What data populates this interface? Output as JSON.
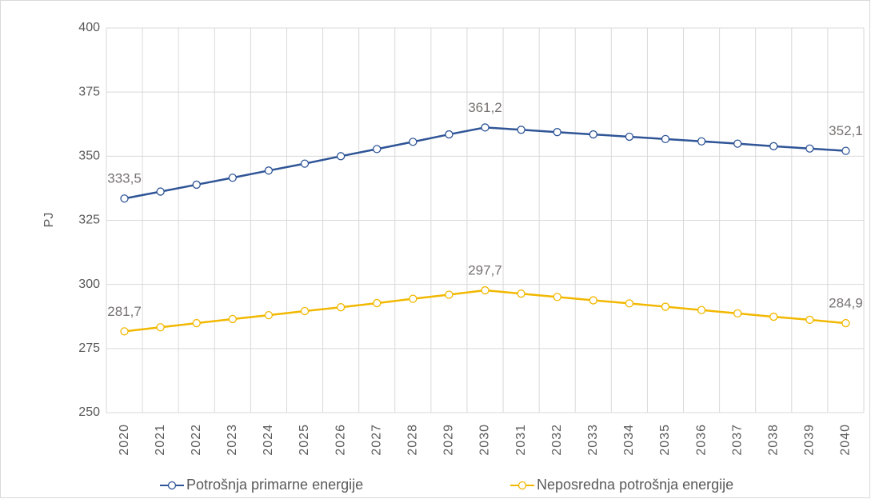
{
  "chart_data": {
    "type": "line",
    "y_label": "PJ",
    "categories": [
      "2020",
      "2021",
      "2022",
      "2023",
      "2024",
      "2025",
      "2026",
      "2027",
      "2028",
      "2029",
      "2030",
      "2031",
      "2032",
      "2033",
      "2034",
      "2035",
      "2036",
      "2037",
      "2038",
      "2039",
      "2040"
    ],
    "series": [
      {
        "name": "Potrošnja primarne energije",
        "color": "#2f5597",
        "values": [
          333.5,
          336.2,
          338.9,
          341.6,
          344.4,
          347.1,
          350.0,
          352.8,
          355.6,
          358.5,
          361.2,
          360.3,
          359.4,
          358.5,
          357.6,
          356.7,
          355.8,
          354.9,
          353.9,
          353.0,
          352.1
        ],
        "value_labels": [
          "333,5",
          null,
          null,
          null,
          null,
          null,
          null,
          null,
          null,
          null,
          "361,2",
          null,
          null,
          null,
          null,
          null,
          null,
          null,
          null,
          null,
          "352,1"
        ]
      },
      {
        "name": "Neposredna potrošnja energije",
        "color": "#f2b800",
        "values": [
          281.7,
          283.3,
          284.9,
          286.5,
          288.0,
          289.6,
          291.1,
          292.7,
          294.4,
          296.0,
          297.7,
          296.4,
          295.1,
          293.8,
          292.6,
          291.3,
          290.0,
          288.7,
          287.4,
          286.2,
          284.9
        ],
        "value_labels": [
          "281,7",
          null,
          null,
          null,
          null,
          null,
          null,
          null,
          null,
          null,
          "297,7",
          null,
          null,
          null,
          null,
          null,
          null,
          null,
          null,
          null,
          "284,9"
        ]
      }
    ],
    "ylim": [
      250,
      400
    ],
    "yticks": [
      250,
      275,
      300,
      325,
      350,
      375,
      400
    ],
    "grid": true,
    "legend": "bottom"
  }
}
